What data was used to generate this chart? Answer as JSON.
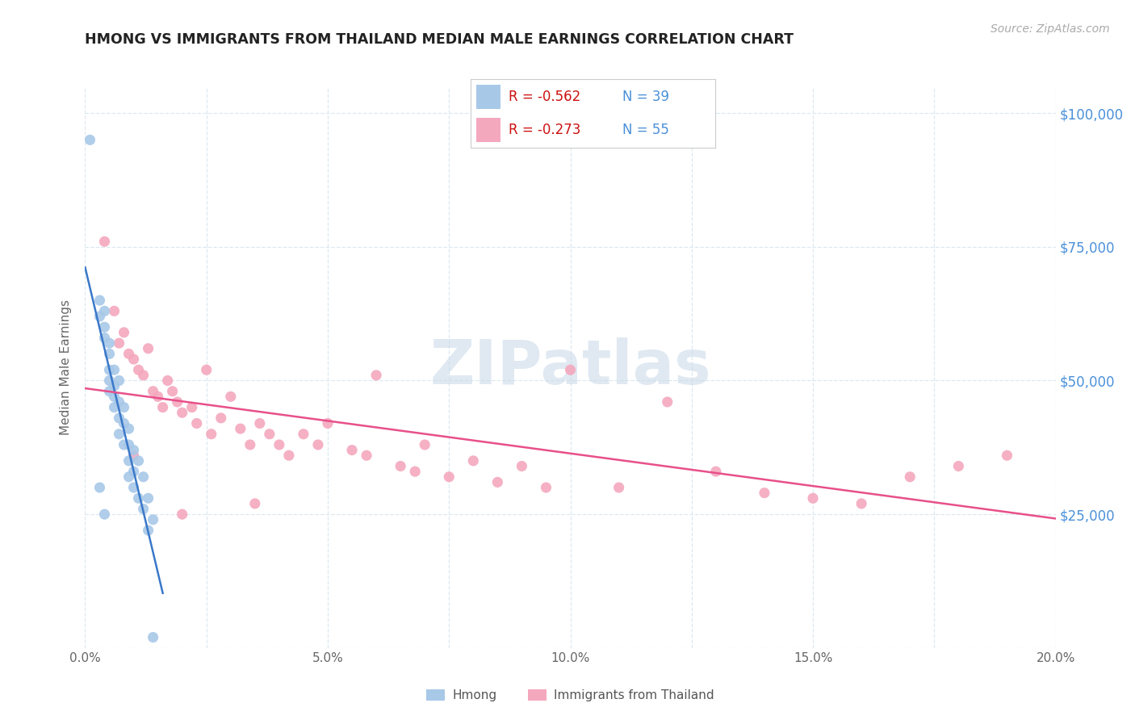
{
  "title": "HMONG VS IMMIGRANTS FROM THAILAND MEDIAN MALE EARNINGS CORRELATION CHART",
  "source": "Source: ZipAtlas.com",
  "ylabel": "Median Male Earnings",
  "x_min": 0.0,
  "x_max": 0.2,
  "y_min": 0,
  "y_max": 105000,
  "y_ticks": [
    0,
    25000,
    50000,
    75000,
    100000
  ],
  "y_tick_labels": [
    "",
    "$25,000",
    "$50,000",
    "$75,000",
    "$100,000"
  ],
  "x_tick_labels": [
    "0.0%",
    "",
    "5.0%",
    "",
    "10.0%",
    "",
    "15.0%",
    "",
    "20.0%"
  ],
  "x_ticks": [
    0.0,
    0.025,
    0.05,
    0.075,
    0.1,
    0.125,
    0.15,
    0.175,
    0.2
  ],
  "hmong_color": "#a8c8e8",
  "thailand_color": "#f4a8be",
  "hmong_line_color": "#3a78c9",
  "thailand_line_color": "#e8508a",
  "legend_text_color": "#4a90d9",
  "right_axis_label_color": "#4a90d9",
  "hmong_R": "-0.562",
  "hmong_N": "39",
  "thailand_R": "-0.273",
  "thailand_N": "55",
  "watermark": "ZIPatlas",
  "background_color": "#ffffff",
  "grid_color": "#dce8f0",
  "hmong_x": [
    0.001,
    0.003,
    0.003,
    0.004,
    0.004,
    0.004,
    0.005,
    0.005,
    0.005,
    0.005,
    0.005,
    0.006,
    0.006,
    0.006,
    0.006,
    0.007,
    0.007,
    0.007,
    0.007,
    0.008,
    0.008,
    0.008,
    0.009,
    0.009,
    0.009,
    0.009,
    0.01,
    0.01,
    0.01,
    0.011,
    0.011,
    0.012,
    0.012,
    0.013,
    0.013,
    0.014,
    0.003,
    0.004,
    0.014
  ],
  "hmong_y": [
    95000,
    62000,
    65000,
    60000,
    58000,
    63000,
    55000,
    52000,
    57000,
    50000,
    48000,
    52000,
    49000,
    47000,
    45000,
    50000,
    46000,
    43000,
    40000,
    45000,
    42000,
    38000,
    41000,
    38000,
    35000,
    32000,
    37000,
    33000,
    30000,
    35000,
    28000,
    32000,
    26000,
    28000,
    22000,
    24000,
    30000,
    25000,
    2000
  ],
  "thailand_x": [
    0.004,
    0.006,
    0.007,
    0.008,
    0.009,
    0.01,
    0.011,
    0.012,
    0.013,
    0.014,
    0.015,
    0.016,
    0.017,
    0.018,
    0.019,
    0.02,
    0.022,
    0.023,
    0.025,
    0.026,
    0.028,
    0.03,
    0.032,
    0.034,
    0.036,
    0.038,
    0.04,
    0.042,
    0.045,
    0.048,
    0.05,
    0.055,
    0.058,
    0.06,
    0.065,
    0.068,
    0.07,
    0.075,
    0.08,
    0.085,
    0.09,
    0.095,
    0.1,
    0.11,
    0.12,
    0.13,
    0.14,
    0.15,
    0.16,
    0.17,
    0.18,
    0.19,
    0.01,
    0.02,
    0.035
  ],
  "thailand_y": [
    76000,
    63000,
    57000,
    59000,
    55000,
    54000,
    52000,
    51000,
    56000,
    48000,
    47000,
    45000,
    50000,
    48000,
    46000,
    44000,
    45000,
    42000,
    52000,
    40000,
    43000,
    47000,
    41000,
    38000,
    42000,
    40000,
    38000,
    36000,
    40000,
    38000,
    42000,
    37000,
    36000,
    51000,
    34000,
    33000,
    38000,
    32000,
    35000,
    31000,
    34000,
    30000,
    52000,
    30000,
    46000,
    33000,
    29000,
    28000,
    27000,
    32000,
    34000,
    36000,
    36000,
    25000,
    27000
  ]
}
